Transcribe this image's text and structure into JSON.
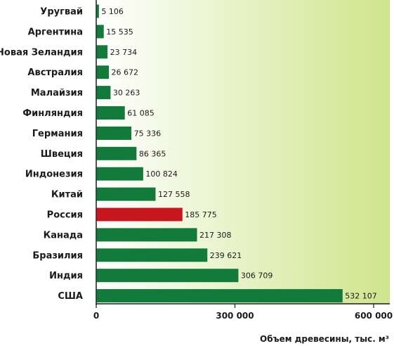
{
  "chart_data": {
    "type": "bar",
    "orientation": "horizontal",
    "categories": [
      "Уругвай",
      "Аргентина",
      "Новая Зеландия",
      "Австралия",
      "Малайзия",
      "Финляндия",
      "Германия",
      "Швеция",
      "Индонезия",
      "Китай",
      "Россия",
      "Канада",
      "Бразилия",
      "Индия",
      "США"
    ],
    "values": [
      5106,
      15535,
      23734,
      26672,
      30263,
      61085,
      75336,
      86365,
      100824,
      127558,
      185775,
      217308,
      239621,
      306709,
      532107
    ],
    "value_labels": [
      "5 106",
      "15 535",
      "23 734",
      "26 672",
      "30 263",
      "61 085",
      "75 336",
      "86 365",
      "100 824",
      "127 558",
      "185 775",
      "217 308",
      "239 621",
      "306 709",
      "532 107"
    ],
    "xticks": [
      0,
      300000,
      600000
    ],
    "xtick_labels": [
      "0",
      "300 000",
      "600 000"
    ],
    "xlim": [
      0,
      600000
    ],
    "xlabel": "Объем древесины, тыс. м³",
    "ylabel": "",
    "title": "",
    "grid": false,
    "colors": {
      "bar": "#127a3a",
      "bar_highlight": "#c8161e",
      "highlight_category": "Россия",
      "background_left": "#ffffff",
      "background_right": "#cfe58c"
    }
  }
}
